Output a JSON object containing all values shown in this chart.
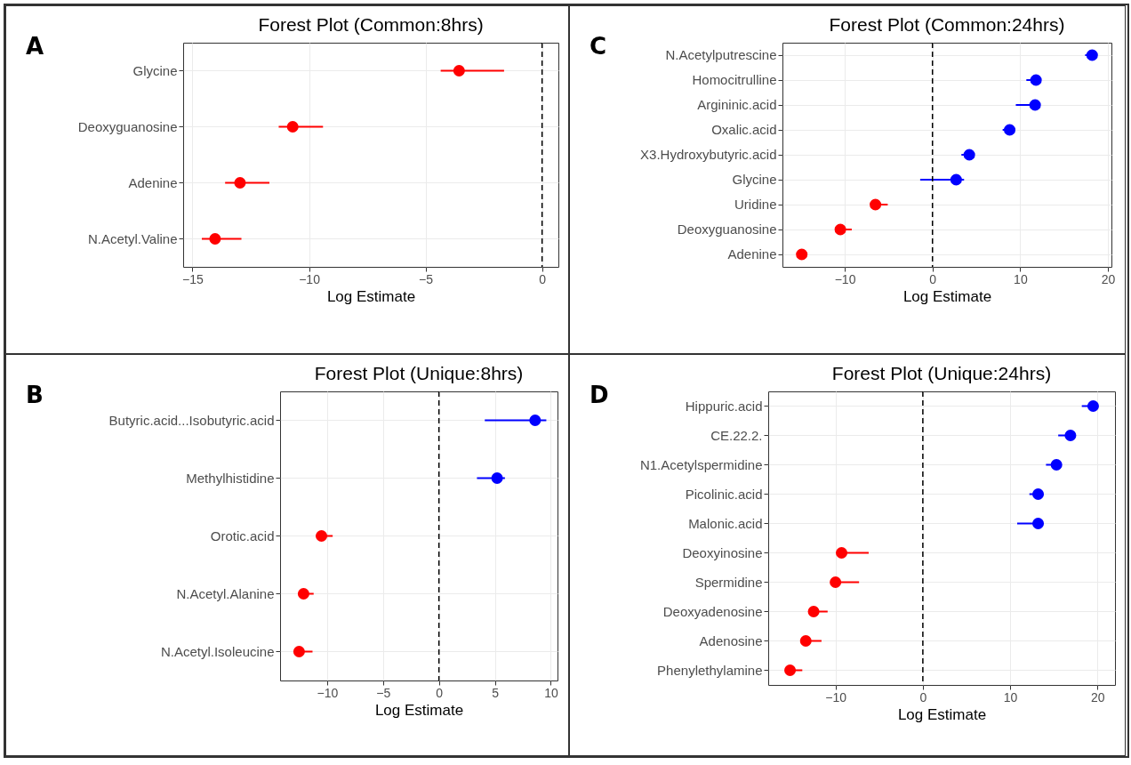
{
  "chart_data": [
    {
      "type": "scatter",
      "orientation": "horizontal",
      "title": "Forest Plot (Common:8hrs)",
      "xlabel": "Log Estimate",
      "annotations": [
        "A"
      ],
      "categories": [
        "Glycine",
        "Deoxyguanosine",
        "Adenine",
        "N.Acetyl.Valine"
      ],
      "values": [
        -3.56,
        -10.7,
        -12.96,
        -14.03
      ],
      "errors": [
        [
          -4.35,
          -1.63
        ],
        [
          -11.3,
          -9.4
        ],
        [
          -13.6,
          -11.7
        ],
        [
          -14.6,
          -12.9
        ]
      ],
      "colors": [
        "#ff0000",
        "#ff0000",
        "#ff0000",
        "#ff0000"
      ],
      "xlim": [
        -15.4,
        0.7
      ],
      "xticks": [
        -15,
        -10,
        -5,
        0
      ],
      "grid": true,
      "marker": "circle",
      "ref_lines": [
        {
          "axis": "x",
          "value": 0,
          "line_style": "dashed"
        }
      ]
    },
    {
      "type": "scatter",
      "orientation": "horizontal",
      "title": "Forest Plot (Common:24hrs)",
      "xlabel": "Log Estimate",
      "annotations": [
        "C"
      ],
      "categories": [
        "N.Acetylputrescine",
        "Homocitrulline",
        "Argininic.acid",
        "Oxalic.acid",
        "X3.Hydroxybutyric.acid",
        "Glycine",
        "Uridine",
        "Deoxyguanosine",
        "Adenine"
      ],
      "values": [
        18.2,
        11.8,
        11.7,
        8.8,
        4.2,
        2.7,
        -6.5,
        -10.5,
        -14.9
      ],
      "errors": [
        [
          17.4,
          18.5
        ],
        [
          10.7,
          12.1
        ],
        [
          9.5,
          12.0
        ],
        [
          8.0,
          9.2
        ],
        [
          3.3,
          4.6
        ],
        [
          -1.4,
          3.6
        ],
        [
          -7.0,
          -5.1
        ],
        [
          -10.9,
          -9.2
        ],
        [
          -15.3,
          -14.5
        ]
      ],
      "colors": [
        "#0000ff",
        "#0000ff",
        "#0000ff",
        "#0000ff",
        "#0000ff",
        "#0000ff",
        "#ff0000",
        "#ff0000",
        "#ff0000"
      ],
      "xlim": [
        -17.1,
        20.4
      ],
      "xticks": [
        -10,
        0,
        10,
        20
      ],
      "grid": true,
      "marker": "circle",
      "ref_lines": [
        {
          "axis": "x",
          "value": 0,
          "line_style": "dashed"
        }
      ]
    },
    {
      "type": "scatter",
      "orientation": "horizontal",
      "title": "Forest Plot (Unique:8hrs)",
      "xlabel": "Log Estimate",
      "annotations": [
        "B"
      ],
      "categories": [
        "Butyric.acid...Isobutyric.acid",
        "Methylhistidine",
        "Orotic.acid",
        "N.Acetyl.Alanine",
        "N.Acetyl.Isoleucine"
      ],
      "values": [
        8.6,
        5.2,
        -10.5,
        -12.1,
        -12.5
      ],
      "errors": [
        [
          4.1,
          9.6
        ],
        [
          3.4,
          5.9
        ],
        [
          -11.0,
          -9.5
        ],
        [
          -12.5,
          -11.2
        ],
        [
          -12.9,
          -11.3
        ]
      ],
      "colors": [
        "#0000ff",
        "#0000ff",
        "#ff0000",
        "#ff0000",
        "#ff0000"
      ],
      "xlim": [
        -14.2,
        10.6
      ],
      "xticks": [
        -10,
        -5,
        0,
        5,
        10
      ],
      "grid": true,
      "marker": "circle",
      "ref_lines": [
        {
          "axis": "x",
          "value": 0,
          "line_style": "dashed"
        }
      ]
    },
    {
      "type": "scatter",
      "orientation": "horizontal",
      "title": "Forest Plot (Unique:24hrs)",
      "xlabel": "Log Estimate",
      "annotations": [
        "D"
      ],
      "categories": [
        "Hippuric.acid",
        "CE.22.2.",
        "N1.Acetylspermidine",
        "Picolinic.acid",
        "Malonic.acid",
        "Deoxyinosine",
        "Spermidine",
        "Deoxyadenosine",
        "Adenosine",
        "Phenylethylamine"
      ],
      "values": [
        19.5,
        16.9,
        15.3,
        13.2,
        13.2,
        -9.3,
        -10.0,
        -12.5,
        -13.4,
        -15.2
      ],
      "errors": [
        [
          18.2,
          19.9
        ],
        [
          15.5,
          17.3
        ],
        [
          14.1,
          15.7
        ],
        [
          12.2,
          13.6
        ],
        [
          10.8,
          13.6
        ],
        [
          -9.8,
          -6.2
        ],
        [
          -10.5,
          -7.3
        ],
        [
          -13.0,
          -10.9
        ],
        [
          -13.9,
          -11.6
        ],
        [
          -15.6,
          -13.8
        ]
      ],
      "colors": [
        "#0000ff",
        "#0000ff",
        "#0000ff",
        "#0000ff",
        "#0000ff",
        "#ff0000",
        "#ff0000",
        "#ff0000",
        "#ff0000",
        "#ff0000"
      ],
      "xlim": [
        -17.7,
        22.0
      ],
      "xticks": [
        -10,
        0,
        10,
        20
      ],
      "grid": true,
      "marker": "circle",
      "ref_lines": [
        {
          "axis": "x",
          "value": 0,
          "line_style": "dashed"
        }
      ]
    }
  ]
}
